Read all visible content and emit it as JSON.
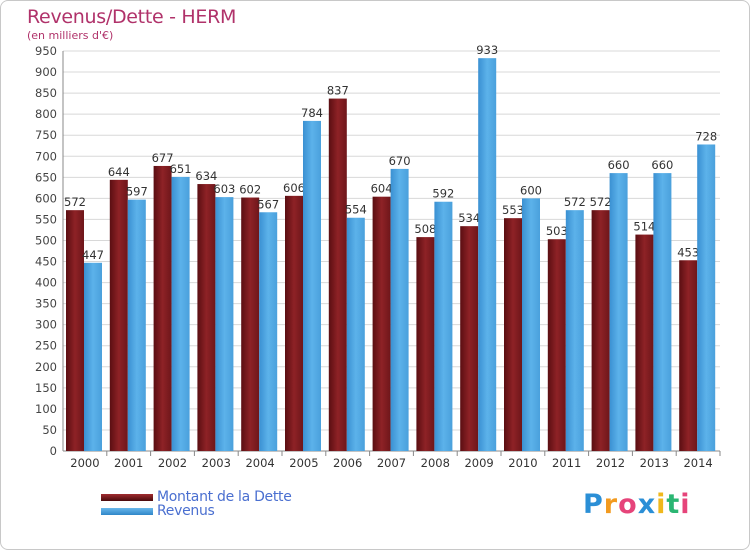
{
  "header": {
    "title": "Revenus/Dette - HERM",
    "subtitle": "(en milliers d'€)"
  },
  "legend": {
    "items": [
      {
        "label": "Montant de la Dette",
        "color": "#7b1a1e"
      },
      {
        "label": "Revenus",
        "color": "#4aa3e0"
      }
    ]
  },
  "logo": {
    "letters": [
      "P",
      "r",
      "o",
      "x",
      "i",
      "t",
      "i"
    ],
    "colors": [
      "#2b8fd6",
      "#f29a1f",
      "#e6447a",
      "#2b8fd6",
      "#f0b81c",
      "#2bb673",
      "#e6447a"
    ]
  },
  "chart_data": {
    "type": "bar",
    "title": "Revenus/Dette - HERM",
    "subtitle": "(en milliers d'€)",
    "xlabel": "",
    "ylabel": "",
    "ylim": [
      0,
      950
    ],
    "yticks": [
      0,
      50,
      100,
      150,
      200,
      250,
      300,
      350,
      400,
      450,
      500,
      550,
      600,
      650,
      700,
      750,
      800,
      850,
      900,
      950
    ],
    "grid": true,
    "categories": [
      "2000",
      "2001",
      "2002",
      "2003",
      "2004",
      "2005",
      "2006",
      "2007",
      "2008",
      "2009",
      "2010",
      "2011",
      "2012",
      "2013",
      "2014"
    ],
    "series": [
      {
        "name": "Montant de la Dette",
        "color": "#7b1a1e",
        "values": [
          572,
          644,
          677,
          634,
          602,
          606,
          837,
          604,
          508,
          534,
          553,
          503,
          572,
          514,
          453
        ]
      },
      {
        "name": "Revenus",
        "color": "#4aa3e0",
        "values": [
          447,
          597,
          651,
          603,
          567,
          784,
          554,
          670,
          592,
          933,
          600,
          572,
          660,
          660,
          728
        ]
      }
    ]
  }
}
